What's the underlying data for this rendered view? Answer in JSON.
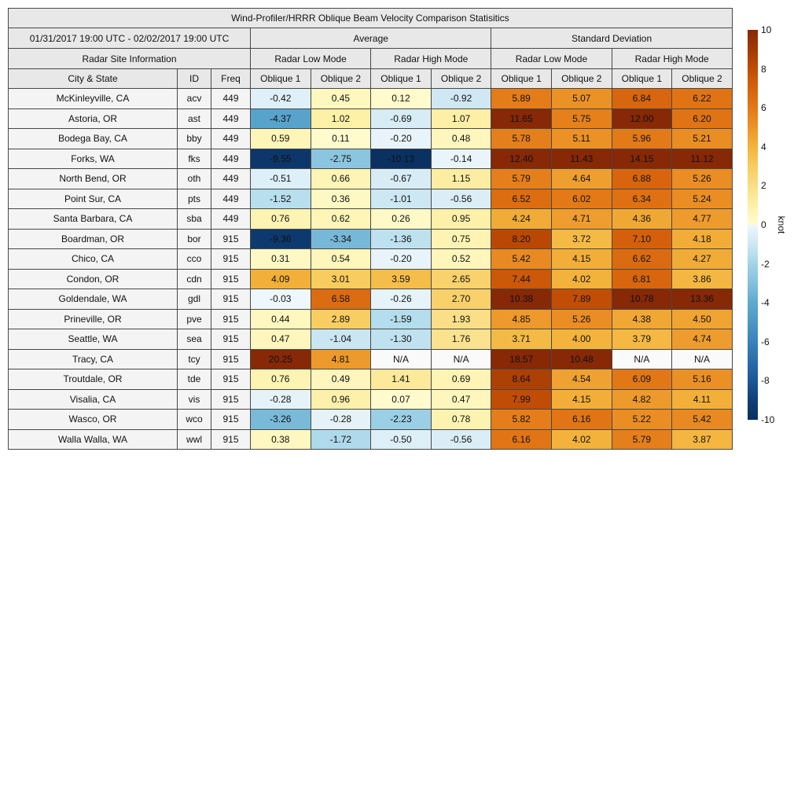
{
  "chart_data": {
    "type": "table",
    "title": "Wind-Profiler/HRRR Oblique Beam Velocity Comparison Statisitics",
    "header": {
      "date_range": "01/31/2017 19:00 UTC - 02/02/2017 19:00 UTC",
      "group_labels": [
        "Average",
        "Standard Deviation"
      ],
      "site_info_label": "Radar Site Information",
      "mode_labels": [
        "Radar Low Mode",
        "Radar High Mode",
        "Radar Low Mode",
        "Radar High Mode"
      ],
      "column_labels": [
        "City & State",
        "ID",
        "Freq",
        "Oblique 1",
        "Oblique 2",
        "Oblique 1",
        "Oblique 2",
        "Oblique 1",
        "Oblique 2",
        "Oblique 1",
        "Oblique 2"
      ]
    },
    "value_column_meaning": [
      "Average Radar Low Mode Oblique 1",
      "Average Radar Low Mode Oblique 2",
      "Average Radar High Mode Oblique 1",
      "Average Radar High Mode Oblique 2",
      "Standard Deviation Radar Low Mode Oblique 1",
      "Standard Deviation Radar Low Mode Oblique 2",
      "Standard Deviation Radar High Mode Oblique 1",
      "Standard Deviation Radar High Mode Oblique 2"
    ],
    "na_label": "N/A",
    "rows": [
      {
        "city": "McKinleyville, CA",
        "id": "acv",
        "freq": "449",
        "values": [
          -0.42,
          0.45,
          0.12,
          -0.92,
          5.89,
          5.07,
          6.84,
          6.22
        ]
      },
      {
        "city": "Astoria, OR",
        "id": "ast",
        "freq": "449",
        "values": [
          -4.37,
          1.02,
          -0.69,
          1.07,
          11.65,
          5.75,
          12.0,
          6.2
        ]
      },
      {
        "city": "Bodega Bay, CA",
        "id": "bby",
        "freq": "449",
        "values": [
          0.59,
          0.11,
          -0.2,
          0.48,
          5.78,
          5.11,
          5.96,
          5.21
        ]
      },
      {
        "city": "Forks, WA",
        "id": "fks",
        "freq": "449",
        "values": [
          -9.55,
          -2.75,
          -10.13,
          -0.14,
          12.4,
          11.43,
          14.15,
          11.12
        ]
      },
      {
        "city": "North Bend, OR",
        "id": "oth",
        "freq": "449",
        "values": [
          -0.51,
          0.66,
          -0.67,
          1.15,
          5.79,
          4.64,
          6.88,
          5.26
        ]
      },
      {
        "city": "Point Sur, CA",
        "id": "pts",
        "freq": "449",
        "values": [
          -1.52,
          0.36,
          -1.01,
          -0.56,
          6.52,
          6.02,
          6.34,
          5.24
        ]
      },
      {
        "city": "Santa Barbara, CA",
        "id": "sba",
        "freq": "449",
        "values": [
          0.76,
          0.62,
          0.26,
          0.95,
          4.24,
          4.71,
          4.36,
          4.77
        ]
      },
      {
        "city": "Boardman, OR",
        "id": "bor",
        "freq": "915",
        "values": [
          -9.36,
          -3.34,
          -1.36,
          0.75,
          8.2,
          3.72,
          7.1,
          4.18
        ]
      },
      {
        "city": "Chico, CA",
        "id": "cco",
        "freq": "915",
        "values": [
          0.31,
          0.54,
          -0.2,
          0.52,
          5.42,
          4.15,
          6.62,
          4.27
        ]
      },
      {
        "city": "Condon, OR",
        "id": "cdn",
        "freq": "915",
        "values": [
          4.09,
          3.01,
          3.59,
          2.65,
          7.44,
          4.02,
          6.81,
          3.86
        ]
      },
      {
        "city": "Goldendale, WA",
        "id": "gdl",
        "freq": "915",
        "values": [
          -0.03,
          6.58,
          -0.26,
          2.7,
          10.38,
          7.89,
          10.78,
          13.36
        ]
      },
      {
        "city": "Prineville, OR",
        "id": "pve",
        "freq": "915",
        "values": [
          0.44,
          2.89,
          -1.59,
          1.93,
          4.85,
          5.26,
          4.38,
          4.5
        ]
      },
      {
        "city": "Seattle, WA",
        "id": "sea",
        "freq": "915",
        "values": [
          0.47,
          -1.04,
          -1.3,
          1.76,
          3.71,
          4.0,
          3.79,
          4.74
        ]
      },
      {
        "city": "Tracy, CA",
        "id": "tcy",
        "freq": "915",
        "values": [
          20.25,
          4.81,
          null,
          null,
          18.57,
          10.48,
          null,
          null
        ]
      },
      {
        "city": "Troutdale, OR",
        "id": "tde",
        "freq": "915",
        "values": [
          0.76,
          0.49,
          1.41,
          0.69,
          8.64,
          4.54,
          6.09,
          5.16
        ]
      },
      {
        "city": "Visalia, CA",
        "id": "vis",
        "freq": "915",
        "values": [
          -0.28,
          0.96,
          0.07,
          0.47,
          7.99,
          4.15,
          4.82,
          4.11
        ]
      },
      {
        "city": "Wasco, OR",
        "id": "wco",
        "freq": "915",
        "values": [
          -3.26,
          -0.28,
          -2.23,
          0.78,
          5.82,
          6.16,
          5.22,
          5.42
        ]
      },
      {
        "city": "Walla Walla, WA",
        "id": "wwl",
        "freq": "915",
        "values": [
          0.38,
          -1.72,
          -0.5,
          -0.56,
          6.16,
          4.02,
          5.79,
          3.87
        ]
      }
    ],
    "colorbar": {
      "label": "knot",
      "min": -10,
      "max": 10,
      "ticks": [
        10,
        8,
        6,
        4,
        2,
        0,
        -2,
        -4,
        -6,
        -8,
        -10
      ]
    }
  },
  "style": {
    "header_bg": "#e8e8e8",
    "label_cell_bg": "#f4f4f4",
    "na_cell_bg": "#fafafa",
    "border_color": "#474747",
    "text_color": "#111111",
    "positive_scale": [
      [
        0.0,
        "#fffcd1"
      ],
      [
        0.05,
        "#fef6bc"
      ],
      [
        0.1,
        "#fdf0a8"
      ],
      [
        0.2,
        "#fbde86"
      ],
      [
        0.3,
        "#f8cc5f"
      ],
      [
        0.4,
        "#f3b33c"
      ],
      [
        0.5,
        "#ec9428"
      ],
      [
        0.6,
        "#e37917"
      ],
      [
        0.7,
        "#d6620c"
      ],
      [
        0.8,
        "#c04c05"
      ],
      [
        0.9,
        "#a13a05"
      ],
      [
        1.0,
        "#872806"
      ]
    ],
    "negative_scale": [
      [
        0.0,
        "#eff8fc"
      ],
      [
        0.05,
        "#ddeff7"
      ],
      [
        0.1,
        "#cde7f3"
      ],
      [
        0.15,
        "#b8dfee"
      ],
      [
        0.2,
        "#a2d3e8"
      ],
      [
        0.3,
        "#83c0dd"
      ],
      [
        0.4,
        "#60a9cf"
      ],
      [
        0.5,
        "#4b98c5"
      ],
      [
        0.6,
        "#3981bc"
      ],
      [
        0.7,
        "#2a6cab"
      ],
      [
        0.8,
        "#1c5798"
      ],
      [
        0.9,
        "#113e76"
      ],
      [
        1.0,
        "#0a3161"
      ]
    ]
  }
}
